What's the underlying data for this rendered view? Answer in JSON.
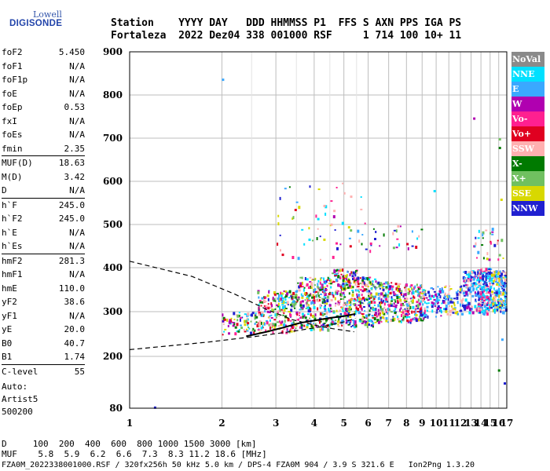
{
  "logo": {
    "line1": "Lowell",
    "line2": "DIGISONDE"
  },
  "header": {
    "line1": "Station    YYYY DAY   DDD HHMMSS P1  FFS S AXN PPS IGA PS",
    "line2": "Fortaleza  2022 Dez04 338 001000 RSF     1 714 100 10+ 11"
  },
  "params": [
    [
      {
        "name": "foF2",
        "value": "5.450"
      },
      {
        "name": "foF1",
        "value": "N/A"
      },
      {
        "name": "foF1p",
        "value": "N/A"
      },
      {
        "name": "foE",
        "value": "N/A"
      },
      {
        "name": "foEp",
        "value": "0.53"
      },
      {
        "name": "fxI",
        "value": "N/A"
      },
      {
        "name": "foEs",
        "value": "N/A"
      },
      {
        "name": "fmin",
        "value": "2.35"
      }
    ],
    [
      {
        "name": "MUF(D)",
        "value": "18.63"
      },
      {
        "name": "M(D)",
        "value": "3.42"
      },
      {
        "name": "D",
        "value": "N/A"
      }
    ],
    [
      {
        "name": "h`F",
        "value": "245.0"
      },
      {
        "name": "h`F2",
        "value": "245.0"
      },
      {
        "name": "h`E",
        "value": "N/A"
      },
      {
        "name": "h`Es",
        "value": "N/A"
      }
    ],
    [
      {
        "name": "hmF2",
        "value": "281.3"
      },
      {
        "name": "hmF1",
        "value": "N/A"
      },
      {
        "name": "hmE",
        "value": "110.0"
      },
      {
        "name": "yF2",
        "value": "38.6"
      },
      {
        "name": "yF1",
        "value": "N/A"
      },
      {
        "name": "yE",
        "value": "20.0"
      },
      {
        "name": "B0",
        "value": "40.7"
      },
      {
        "name": "B1",
        "value": "1.74"
      }
    ],
    [
      {
        "name": "C-level",
        "value": "55"
      }
    ]
  ],
  "auto": {
    "line1": "Auto:",
    "line2": "Artist5",
    "line3": "500200"
  },
  "bottom": {
    "d_line": "D     100  200  400  600  800 1000 1500 3000 [km]",
    "muf_line": "MUF    5.8  5.9  6.2  6.6  7.3  8.3 11.2 18.6 [MHz]",
    "footer": "FZA0M_2022338001000.RSF / 320fx256h 50 kHz 5.0 km / DPS-4 FZA0M 904 / 3.9 S 321.6 E   Ion2Png 1.3.20"
  },
  "legend": [
    {
      "label": "NoVal",
      "color": "#8a8a8a"
    },
    {
      "label": "NNE",
      "color": "#00e0ff"
    },
    {
      "label": "E",
      "color": "#3aa8ff"
    },
    {
      "label": "W",
      "color": "#b000b0"
    },
    {
      "label": "Vo-",
      "color": "#ff2090"
    },
    {
      "label": "Vo+",
      "color": "#e00020"
    },
    {
      "label": "SSW",
      "color": "#ffb0b0"
    },
    {
      "label": "X-",
      "color": "#007a00"
    },
    {
      "label": "X+",
      "color": "#70c060"
    },
    {
      "label": "SSE",
      "color": "#d8d800"
    },
    {
      "label": "NNW",
      "color": "#2020d0"
    }
  ],
  "chart_data": {
    "type": "scatter",
    "x_ticks": [
      "1",
      "2",
      "3",
      "4",
      "5",
      "6",
      "7",
      "8",
      "9",
      "10",
      "11",
      "12",
      "13",
      "14",
      "15",
      "16",
      "17"
    ],
    "y_ticks": [
      "80",
      "200",
      "300",
      "400",
      "500",
      "600",
      "700",
      "800",
      "900"
    ],
    "xlim": [
      1,
      17
    ],
    "ylim_km": [
      80,
      900
    ],
    "x_scale": "log (frequency, MHz)",
    "grid": true,
    "legend_position": "right",
    "profile_curve": [
      [
        2.4,
        245
      ],
      [
        2.8,
        255
      ],
      [
        3.2,
        265
      ],
      [
        3.6,
        275
      ],
      [
        4.0,
        280
      ],
      [
        4.5,
        286
      ],
      [
        5.0,
        290
      ],
      [
        5.45,
        295
      ]
    ],
    "upper_dashed": [
      [
        1,
        415
      ],
      [
        1.6,
        380
      ],
      [
        2.2,
        340
      ],
      [
        2.8,
        305
      ],
      [
        3.4,
        282
      ],
      [
        4.0,
        270
      ],
      [
        4.6,
        262
      ],
      [
        5.4,
        255
      ]
    ],
    "lower_dashed": [
      [
        1,
        215
      ],
      [
        1.8,
        232
      ],
      [
        2.6,
        245
      ],
      [
        3.4,
        256
      ],
      [
        4.2,
        266
      ],
      [
        5.0,
        277
      ],
      [
        5.45,
        285
      ]
    ]
  }
}
